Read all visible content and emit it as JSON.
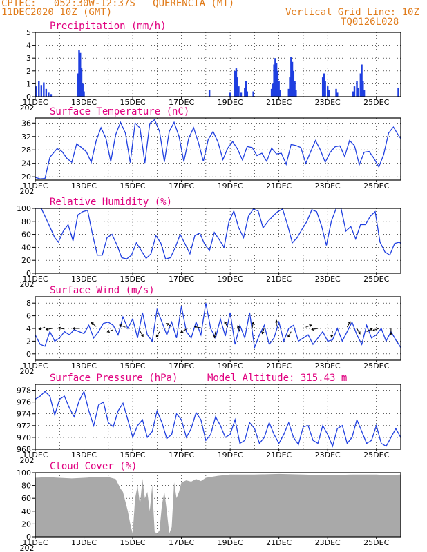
{
  "header": {
    "left_line1": "CPTEC:   052:30W-12:37S   QUERENCIA (MT)",
    "left_line2": "11DEC2020 10Z (GMT)",
    "right_line1": "Vertical Grid Line: 10Z",
    "right_line2": "TQ0126L028"
  },
  "colors": {
    "header": "#e07b1a",
    "title": "#e0007f",
    "line": "#1f3fe0",
    "cloud": "#a9a9a9"
  },
  "x_ticks": [
    "11DEC",
    "13DEC",
    "15DEC",
    "17DEC",
    "19DEC",
    "21DEC",
    "23DEC",
    "25DEC"
  ],
  "x_year_label": "202",
  "chart_data": [
    {
      "type": "bar",
      "title": "Precipitation (mm/h)",
      "ylim": [
        0,
        5
      ],
      "yticks": [
        0,
        1,
        2,
        3,
        4,
        5
      ],
      "points": [
        [
          0.05,
          0.8
        ],
        [
          0.15,
          1.2
        ],
        [
          0.25,
          0.9
        ],
        [
          0.35,
          1.1
        ],
        [
          0.45,
          0.6
        ],
        [
          0.55,
          0.3
        ],
        [
          0.65,
          0.2
        ],
        [
          1.75,
          1.8
        ],
        [
          1.8,
          3.6
        ],
        [
          1.85,
          3.4
        ],
        [
          1.9,
          2.2
        ],
        [
          1.95,
          1.0
        ],
        [
          2.0,
          0.4
        ],
        [
          7.15,
          0.5
        ],
        [
          8.0,
          0.3
        ],
        [
          8.2,
          2.0
        ],
        [
          8.25,
          2.2
        ],
        [
          8.3,
          1.5
        ],
        [
          8.35,
          0.8
        ],
        [
          8.45,
          0.3
        ],
        [
          8.6,
          0.7
        ],
        [
          8.65,
          1.2
        ],
        [
          8.7,
          0.4
        ],
        [
          8.95,
          0.4
        ],
        [
          9.7,
          0.6
        ],
        [
          9.75,
          1.0
        ],
        [
          9.8,
          2.5
        ],
        [
          9.85,
          3.0
        ],
        [
          9.9,
          2.6
        ],
        [
          9.95,
          2.0
        ],
        [
          10.0,
          1.2
        ],
        [
          10.05,
          0.5
        ],
        [
          10.4,
          0.6
        ],
        [
          10.45,
          1.5
        ],
        [
          10.5,
          3.1
        ],
        [
          10.55,
          2.7
        ],
        [
          10.6,
          2.0
        ],
        [
          10.65,
          1.2
        ],
        [
          10.7,
          0.5
        ],
        [
          11.8,
          1.5
        ],
        [
          11.85,
          1.8
        ],
        [
          11.9,
          1.2
        ],
        [
          12.0,
          0.8
        ],
        [
          12.05,
          0.5
        ],
        [
          12.35,
          0.6
        ],
        [
          12.4,
          0.3
        ],
        [
          13.05,
          0.4
        ],
        [
          13.1,
          0.8
        ],
        [
          13.2,
          1.2
        ],
        [
          13.25,
          0.7
        ],
        [
          13.35,
          1.8
        ],
        [
          13.4,
          2.5
        ],
        [
          13.45,
          1.2
        ],
        [
          13.5,
          0.5
        ],
        [
          14.9,
          0.7
        ]
      ]
    },
    {
      "type": "line",
      "title": "Surface Temperature (nC)",
      "ylim": [
        19,
        37.5
      ],
      "yticks": [
        20,
        24,
        28,
        32,
        36
      ],
      "x": [
        0.0,
        0.2,
        0.4,
        0.6,
        0.9,
        1.1,
        1.3,
        1.5,
        1.7,
        1.9,
        2.1,
        2.3,
        2.5,
        2.7,
        2.9,
        3.1,
        3.3,
        3.5,
        3.7,
        3.9,
        4.1,
        4.3,
        4.5,
        4.7,
        4.9,
        5.1,
        5.3,
        5.5,
        5.7,
        5.9,
        6.1,
        6.3,
        6.5,
        6.7,
        6.9,
        7.1,
        7.3,
        7.5,
        7.7,
        7.9,
        8.1,
        8.3,
        8.5,
        8.7,
        8.9,
        9.1,
        9.3,
        9.5,
        9.7,
        9.9,
        10.1,
        10.3,
        10.5,
        10.7,
        10.9,
        11.1,
        11.3,
        11.5,
        11.7,
        11.9,
        12.1,
        12.3,
        12.5,
        12.7,
        12.9,
        13.1,
        13.3,
        13.5,
        13.7,
        13.9,
        14.1,
        14.3,
        14.5,
        14.7,
        14.9,
        15.0
      ],
      "y": [
        19.8,
        19.4,
        19.5,
        25.8,
        28.4,
        27.5,
        25.5,
        24.3,
        29.8,
        28.7,
        27.4,
        24.3,
        30.7,
        34.6,
        31.5,
        24.5,
        32.5,
        36.2,
        33.0,
        24.2,
        36.0,
        34.5,
        24.1,
        35.9,
        37.0,
        33.5,
        24.4,
        33.5,
        36.2,
        32.0,
        24.5,
        31.5,
        34.6,
        30.1,
        24.6,
        31.1,
        33.5,
        30.3,
        25.1,
        28.5,
        30.5,
        28.3,
        25.0,
        29.0,
        28.7,
        26.3,
        27.0,
        24.6,
        28.5,
        26.8,
        27.0,
        23.7,
        29.6,
        29.3,
        28.7,
        24.0,
        27.4,
        30.8,
        28.0,
        24.3,
        27.2,
        28.9,
        29.2,
        26.0,
        30.8,
        29.3,
        23.6,
        27.3,
        27.5,
        25.5,
        22.9,
        26.6,
        33.0,
        34.8,
        32.4,
        31.4
      ]
    },
    {
      "type": "line",
      "title": "Relative Humidity (%)",
      "ylim": [
        0,
        100
      ],
      "yticks": [
        0,
        20,
        40,
        60,
        80,
        100
      ],
      "x": [
        0.0,
        0.25,
        0.5,
        0.8,
        0.95,
        1.15,
        1.35,
        1.55,
        1.75,
        1.95,
        2.15,
        2.35,
        2.55,
        2.75,
        2.95,
        3.15,
        3.35,
        3.55,
        3.75,
        3.95,
        4.15,
        4.35,
        4.55,
        4.75,
        4.95,
        5.15,
        5.35,
        5.55,
        5.75,
        5.95,
        6.15,
        6.35,
        6.55,
        6.75,
        6.95,
        7.15,
        7.35,
        7.55,
        7.75,
        7.95,
        8.15,
        8.35,
        8.55,
        8.75,
        8.95,
        9.15,
        9.35,
        9.55,
        9.75,
        9.95,
        10.15,
        10.35,
        10.55,
        10.75,
        10.95,
        11.15,
        11.35,
        11.55,
        11.75,
        11.95,
        12.15,
        12.35,
        12.55,
        12.75,
        12.95,
        13.15,
        13.35,
        13.55,
        13.75,
        13.95,
        14.15,
        14.35,
        14.55,
        14.75,
        14.95,
        15.0
      ],
      "y": [
        100,
        100,
        80,
        55,
        48,
        65,
        75,
        50,
        90,
        95,
        97,
        60,
        28,
        28,
        55,
        60,
        44,
        24,
        22,
        28,
        47,
        35,
        23,
        30,
        58,
        47,
        22,
        24,
        40,
        60,
        45,
        30,
        58,
        62,
        45,
        35,
        63,
        52,
        40,
        80,
        96,
        70,
        55,
        88,
        99,
        96,
        70,
        80,
        88,
        95,
        99,
        75,
        47,
        55,
        68,
        80,
        98,
        95,
        73,
        43,
        80,
        100,
        100,
        65,
        72,
        53,
        75,
        75,
        88,
        95,
        48,
        33,
        28,
        46,
        48,
        46
      ]
    },
    {
      "type": "line",
      "title": "Surface Wind (m/s)",
      "ylim": [
        -1,
        9
      ],
      "yticks": [
        0,
        2,
        4,
        6,
        8
      ],
      "x": [
        0.0,
        0.2,
        0.4,
        0.6,
        0.8,
        1.0,
        1.2,
        1.4,
        1.6,
        1.8,
        2.0,
        2.2,
        2.4,
        2.6,
        2.8,
        3.0,
        3.2,
        3.4,
        3.6,
        3.8,
        4.0,
        4.2,
        4.4,
        4.6,
        4.8,
        5.0,
        5.2,
        5.4,
        5.6,
        5.8,
        6.0,
        6.2,
        6.4,
        6.6,
        6.8,
        7.0,
        7.2,
        7.4,
        7.6,
        7.8,
        8.0,
        8.2,
        8.4,
        8.6,
        8.8,
        9.0,
        9.2,
        9.4,
        9.6,
        9.8,
        10.0,
        10.2,
        10.4,
        10.6,
        10.8,
        11.0,
        11.2,
        11.4,
        11.6,
        11.8,
        12.0,
        12.2,
        12.4,
        12.6,
        12.8,
        13.0,
        13.2,
        13.4,
        13.6,
        13.8,
        14.0,
        14.2,
        14.4,
        14.6,
        14.8,
        15.0
      ],
      "y": [
        3.0,
        1.5,
        1.2,
        3.5,
        2.0,
        2.5,
        3.5,
        3.0,
        3.8,
        3.5,
        3.2,
        4.5,
        2.5,
        3.5,
        4.8,
        5.0,
        4.5,
        3.0,
        5.8,
        4.0,
        5.5,
        2.5,
        6.5,
        3.0,
        2.0,
        7.0,
        5.0,
        3.0,
        5.0,
        2.5,
        7.5,
        3.5,
        2.5,
        5.0,
        3.0,
        8.0,
        4.0,
        2.5,
        5.5,
        2.8,
        6.5,
        1.5,
        4.5,
        2.5,
        6.5,
        1.0,
        3.0,
        4.5,
        1.5,
        2.5,
        5.0,
        2.0,
        4.0,
        4.5,
        2.0,
        2.5,
        3.0,
        1.5,
        2.5,
        3.5,
        2.0,
        2.2,
        4.0,
        2.0,
        3.5,
        5.0,
        3.0,
        1.5,
        4.5,
        2.5,
        3.0,
        4.0,
        2.0,
        3.5,
        2.2,
        1.0
      ],
      "arrows": [
        [
          0.4,
          4.2,
          200
        ],
        [
          0.7,
          4.0,
          190
        ],
        [
          1.2,
          3.9,
          170
        ],
        [
          1.8,
          4.0,
          180
        ],
        [
          2.5,
          4.3,
          140
        ],
        [
          3.2,
          3.8,
          200
        ],
        [
          3.7,
          4.2,
          160
        ],
        [
          4.3,
          3.6,
          300
        ],
        [
          5.1,
          3.5,
          240
        ],
        [
          5.6,
          4.3,
          150
        ],
        [
          6.2,
          3.9,
          210
        ],
        [
          6.8,
          4.1,
          170
        ],
        [
          7.4,
          3.5,
          260
        ],
        [
          7.9,
          4.2,
          120
        ],
        [
          8.4,
          3.5,
          110
        ],
        [
          8.9,
          4.0,
          80
        ],
        [
          9.4,
          4.1,
          250
        ],
        [
          9.9,
          4.3,
          90
        ],
        [
          10.5,
          3.5,
          240
        ],
        [
          11.1,
          4.2,
          20
        ],
        [
          11.6,
          4.0,
          190
        ],
        [
          12.2,
          3.6,
          260
        ],
        [
          12.8,
          4.2,
          60
        ],
        [
          13.2,
          4.0,
          300
        ],
        [
          13.6,
          3.5,
          30
        ],
        [
          14.1,
          4.0,
          200
        ],
        [
          14.6,
          4.0,
          270
        ]
      ]
    },
    {
      "type": "line",
      "title": "Surface Pressure (hPa)",
      "subtitle": "Model Altitude: 315.43 m",
      "ylim": [
        968,
        979
      ],
      "yticks": [
        968,
        970,
        972,
        974,
        976,
        978
      ],
      "x": [
        0.0,
        0.2,
        0.4,
        0.6,
        0.8,
        1.0,
        1.2,
        1.4,
        1.6,
        1.8,
        2.0,
        2.2,
        2.4,
        2.6,
        2.8,
        3.0,
        3.2,
        3.4,
        3.6,
        3.8,
        4.0,
        4.2,
        4.4,
        4.6,
        4.8,
        5.0,
        5.2,
        5.4,
        5.6,
        5.8,
        6.0,
        6.2,
        6.4,
        6.6,
        6.8,
        7.0,
        7.2,
        7.4,
        7.6,
        7.8,
        8.0,
        8.2,
        8.4,
        8.6,
        8.8,
        9.0,
        9.2,
        9.4,
        9.6,
        9.8,
        10.0,
        10.2,
        10.4,
        10.6,
        10.8,
        11.0,
        11.2,
        11.4,
        11.6,
        11.8,
        12.0,
        12.2,
        12.4,
        12.6,
        12.8,
        13.0,
        13.2,
        13.4,
        13.6,
        13.8,
        14.0,
        14.2,
        14.4,
        14.6,
        14.8,
        15.0
      ],
      "y": [
        976.5,
        977.0,
        977.8,
        977.0,
        973.8,
        976.5,
        977.0,
        975.0,
        973.5,
        976.2,
        977.8,
        974.5,
        972.0,
        975.5,
        976.0,
        972.5,
        971.8,
        974.5,
        975.8,
        973.0,
        970.0,
        972.0,
        973.0,
        970.0,
        971.0,
        974.5,
        972.5,
        969.8,
        970.5,
        974.0,
        973.0,
        970.0,
        971.5,
        974.2,
        973.0,
        969.5,
        970.5,
        973.5,
        972.0,
        970.0,
        970.5,
        973.0,
        969.0,
        969.5,
        972.5,
        971.5,
        969.0,
        970.0,
        972.5,
        970.5,
        969.0,
        970.5,
        972.5,
        970.0,
        968.8,
        971.8,
        972.0,
        969.5,
        969.0,
        972.0,
        970.5,
        968.5,
        971.5,
        972.0,
        969.0,
        970.0,
        973.0,
        971.0,
        969.0,
        969.5,
        972.0,
        969.0,
        968.5,
        970.0,
        971.5,
        970.0
      ]
    },
    {
      "type": "area",
      "title": "Cloud Cover (%)",
      "ylim": [
        0,
        100
      ],
      "yticks": [
        0,
        20,
        40,
        60,
        80,
        100
      ],
      "x": [
        0.0,
        0.5,
        1.0,
        1.5,
        2.0,
        2.5,
        3.0,
        3.3,
        3.5,
        3.6,
        3.7,
        3.8,
        3.9,
        4.0,
        4.1,
        4.2,
        4.3,
        4.4,
        4.5,
        4.6,
        4.7,
        4.8,
        4.9,
        5.0,
        5.1,
        5.2,
        5.3,
        5.4,
        5.5,
        5.6,
        5.7,
        5.8,
        5.9,
        6.0,
        6.2,
        6.4,
        6.6,
        6.8,
        7.0,
        7.5,
        8.0,
        9.0,
        10.0,
        11.0,
        12.0,
        13.0,
        14.0,
        14.5,
        15.0
      ],
      "y": [
        92,
        93,
        92,
        91,
        92,
        93,
        93,
        90,
        75,
        70,
        55,
        40,
        20,
        5,
        60,
        80,
        50,
        90,
        60,
        70,
        40,
        80,
        8,
        5,
        10,
        50,
        70,
        40,
        5,
        15,
        85,
        60,
        70,
        85,
        88,
        86,
        90,
        87,
        92,
        95,
        97,
        97,
        98,
        97,
        96,
        97,
        97,
        96,
        97
      ]
    }
  ]
}
